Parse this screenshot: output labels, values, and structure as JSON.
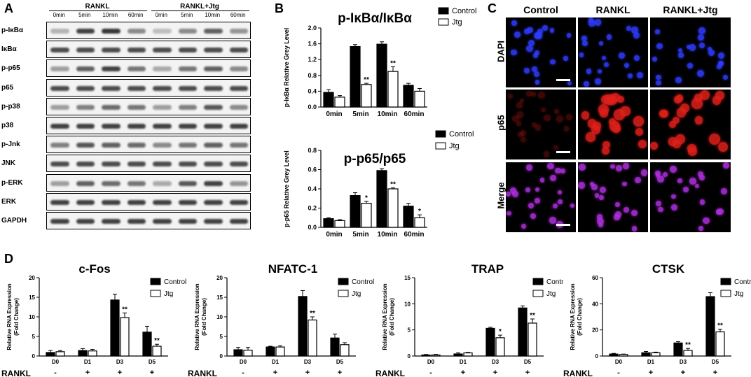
{
  "panels": {
    "a": "A",
    "b": "B",
    "c": "C",
    "d": "D"
  },
  "western": {
    "groups": [
      "RANKL",
      "RANKL+Jtg"
    ],
    "timepoints": [
      "0min",
      "5min",
      "10min",
      "60min",
      "0min",
      "5min",
      "10min",
      "60min"
    ],
    "rows": [
      {
        "label": "p-IκBα",
        "intensity": [
          0.3,
          0.85,
          0.9,
          0.5,
          0.25,
          0.5,
          0.7,
          0.45
        ]
      },
      {
        "label": "IκBα",
        "intensity": [
          0.8,
          0.8,
          0.8,
          0.8,
          0.8,
          0.8,
          0.8,
          0.8
        ]
      },
      {
        "label": "p-p65",
        "intensity": [
          0.4,
          0.7,
          0.85,
          0.6,
          0.35,
          0.6,
          0.7,
          0.5
        ]
      },
      {
        "label": "p65",
        "intensity": [
          0.8,
          0.8,
          0.8,
          0.8,
          0.8,
          0.8,
          0.8,
          0.8
        ]
      },
      {
        "label": "p-p38",
        "intensity": [
          0.4,
          0.55,
          0.65,
          0.6,
          0.4,
          0.55,
          0.75,
          0.5
        ]
      },
      {
        "label": "p38",
        "intensity": [
          0.85,
          0.85,
          0.85,
          0.85,
          0.85,
          0.85,
          0.85,
          0.85
        ]
      },
      {
        "label": "p-Jnk",
        "intensity": [
          0.55,
          0.75,
          0.7,
          0.65,
          0.5,
          0.6,
          0.7,
          0.6
        ]
      },
      {
        "label": "JNK",
        "intensity": [
          0.8,
          0.8,
          0.8,
          0.8,
          0.8,
          0.8,
          0.8,
          0.8
        ]
      },
      {
        "label": "p-ERK",
        "intensity": [
          0.4,
          0.7,
          0.65,
          0.6,
          0.35,
          0.75,
          0.85,
          0.45
        ]
      },
      {
        "label": "ERK",
        "intensity": [
          0.85,
          0.85,
          0.85,
          0.85,
          0.85,
          0.85,
          0.85,
          0.85
        ]
      },
      {
        "label": "GAPDH",
        "intensity": [
          0.85,
          0.85,
          0.85,
          0.85,
          0.85,
          0.85,
          0.85,
          0.85
        ]
      }
    ]
  },
  "microscopy": {
    "columns": [
      "Control",
      "RANKL",
      "RANKL+Jtg"
    ],
    "rows": [
      "DAPI",
      "p65",
      "Merge"
    ]
  },
  "chart_data": [
    {
      "id": "b-top",
      "type": "bar",
      "title": "p-IκBα/IκBα",
      "ylabel": "p-IκBα Relative Grey Level",
      "categories": [
        "0min",
        "5min",
        "10min",
        "60min"
      ],
      "ylim": [
        0,
        2.0
      ],
      "yticks": [
        0.0,
        0.4,
        0.8,
        1.2,
        1.6,
        2.0
      ],
      "ytick_labels": [
        "0.0",
        "0.4",
        "0.8",
        "1.2",
        "1.6",
        "2.0"
      ],
      "series": [
        {
          "name": "Control",
          "values": [
            0.37,
            1.53,
            1.59,
            0.55
          ],
          "errors": [
            0.07,
            0.05,
            0.06,
            0.05
          ]
        },
        {
          "name": "Jtg",
          "values": [
            0.25,
            0.57,
            0.9,
            0.4
          ],
          "errors": [
            0.04,
            0.03,
            0.12,
            0.07
          ]
        }
      ],
      "significance": [
        "",
        "**",
        "**",
        ""
      ],
      "legend": "top-right"
    },
    {
      "id": "b-bottom",
      "type": "bar",
      "title": "p-p65/p65",
      "ylabel": "p-p65 Relative Grey Level",
      "categories": [
        "0min",
        "5min",
        "10min",
        "60min"
      ],
      "ylim": [
        0,
        0.8
      ],
      "yticks": [
        0.0,
        0.2,
        0.4,
        0.6,
        0.8
      ],
      "ytick_labels": [
        "0.0",
        "0.2",
        "0.4",
        "0.6",
        "0.8"
      ],
      "series": [
        {
          "name": "Control",
          "values": [
            0.09,
            0.33,
            0.59,
            0.22
          ],
          "errors": [
            0.01,
            0.03,
            0.02,
            0.03
          ]
        },
        {
          "name": "Jtg",
          "values": [
            0.07,
            0.25,
            0.4,
            0.1
          ],
          "errors": [
            0.01,
            0.02,
            0.01,
            0.03
          ]
        }
      ],
      "significance": [
        "",
        "*",
        "**",
        "*"
      ],
      "legend": "top-right"
    },
    {
      "id": "d1",
      "type": "bar",
      "title": "c-Fos",
      "ylabel": "Relative RNA Expression (Fold Change)",
      "categories": [
        "D0",
        "D1",
        "D3",
        "D5"
      ],
      "rankl_label": "RANKL",
      "rankl": [
        "-",
        "+",
        "+",
        "+"
      ],
      "ylim": [
        0,
        20
      ],
      "yticks": [
        0,
        5,
        10,
        15,
        20
      ],
      "ytick_labels": [
        "0",
        "5",
        "10",
        "15",
        "20"
      ],
      "series": [
        {
          "name": "Control",
          "values": [
            0.9,
            1.4,
            14.3,
            6.1
          ],
          "errors": [
            0.5,
            0.5,
            1.5,
            1.5
          ]
        },
        {
          "name": "Jtg",
          "values": [
            1.1,
            1.3,
            9.8,
            2.5
          ],
          "errors": [
            0.3,
            0.4,
            1.2,
            0.5
          ]
        }
      ],
      "significance": [
        "",
        "",
        "**",
        "**"
      ],
      "legend": "top-right"
    },
    {
      "id": "d2",
      "type": "bar",
      "title": "NFATC-1",
      "ylabel": "Relative RNA Expression (Fold Change)",
      "categories": [
        "D0",
        "D1",
        "D3",
        "D5"
      ],
      "rankl_label": "RANKL",
      "rankl": [
        "-",
        "+",
        "+",
        "+"
      ],
      "ylim": [
        0,
        20
      ],
      "yticks": [
        0,
        5,
        10,
        15,
        20
      ],
      "ytick_labels": [
        "0",
        "5",
        "10",
        "15",
        "20"
      ],
      "series": [
        {
          "name": "Control",
          "values": [
            1.6,
            2.3,
            15.2,
            4.6
          ],
          "errors": [
            0.6,
            0.2,
            1.5,
            1.0
          ]
        },
        {
          "name": "Jtg",
          "values": [
            1.5,
            2.3,
            9.2,
            2.9
          ],
          "errors": [
            0.7,
            0.3,
            0.8,
            0.5
          ]
        }
      ],
      "significance": [
        "",
        "",
        "**",
        ""
      ],
      "legend": "top-right"
    },
    {
      "id": "d3",
      "type": "bar",
      "title": "TRAP",
      "ylabel": "Relative RNA Expression (Fold Change)",
      "categories": [
        "D0",
        "D1",
        "D3",
        "D5"
      ],
      "rankl_label": "RANKL",
      "rankl": [
        "-",
        "+",
        "+",
        "+"
      ],
      "ylim": [
        0,
        15
      ],
      "yticks": [
        0,
        5,
        10,
        15
      ],
      "ytick_labels": [
        "0",
        "5",
        "10",
        "15"
      ],
      "series": [
        {
          "name": "Contro",
          "values": [
            0.2,
            0.4,
            5.3,
            9.2
          ],
          "errors": [
            0.1,
            0.2,
            0.2,
            0.4
          ]
        },
        {
          "name": "Jtg",
          "values": [
            0.2,
            0.6,
            3.5,
            6.3
          ],
          "errors": [
            0.1,
            0.1,
            0.5,
            0.8
          ]
        }
      ],
      "significance": [
        "",
        "",
        "*",
        "**"
      ],
      "legend": "top-right"
    },
    {
      "id": "d4",
      "type": "bar",
      "title": "CTSK",
      "ylabel": "Relative RNA Expression (Fold Change)",
      "categories": [
        "D0",
        "D1",
        "D3",
        "D5"
      ],
      "rankl_label": "RANKL",
      "rankl": [
        "-",
        "+",
        "+",
        "+"
      ],
      "ylim": [
        0,
        60
      ],
      "yticks": [
        0,
        20,
        40,
        60
      ],
      "ytick_labels": [
        "0",
        "20",
        "40",
        "60"
      ],
      "series": [
        {
          "name": "Control",
          "values": [
            1.5,
            2.5,
            10.0,
            45.5
          ],
          "errors": [
            0.5,
            1.0,
            1.0,
            3.0
          ]
        },
        {
          "name": "Jtg",
          "values": [
            1.2,
            2.5,
            4.3,
            18.5
          ],
          "errors": [
            0.3,
            0.5,
            1.5,
            2.0
          ]
        }
      ],
      "significance": [
        "",
        "",
        "**",
        "**"
      ],
      "legend": "top-right"
    }
  ],
  "colors": {
    "control": "#000000",
    "jtg": "#ffffff",
    "dapi": "#2f3cff",
    "p65": "#e0201b",
    "merge": "#b030e0"
  }
}
